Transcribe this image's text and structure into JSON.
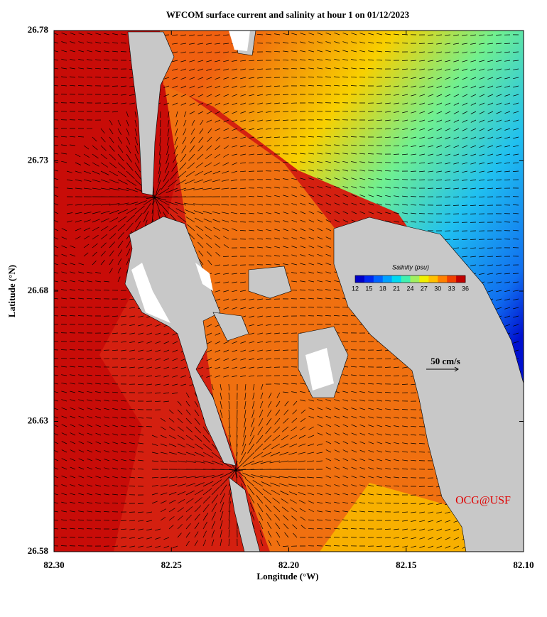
{
  "chart_data": {
    "type": "map",
    "title": "WFCOM surface current and salinity at hour 1 on 01/12/2023",
    "x_label": "Longitude (°W)",
    "y_label": "Latitude (°N)",
    "xlim": [
      82.3,
      82.1
    ],
    "xticks": [
      {
        "value": 82.3,
        "label": "82.30"
      },
      82.25,
      {
        "value": 82.2,
        "label": "82.20"
      },
      82.15,
      {
        "value": 82.1,
        "label": "82.10"
      }
    ],
    "ylim": [
      26.58,
      26.78
    ],
    "yticks": [
      26.58,
      26.63,
      26.68,
      26.73,
      26.78
    ],
    "colorbar": {
      "label": "Salinity (psu)",
      "ticks": [
        12,
        15,
        18,
        21,
        24,
        27,
        30,
        33,
        36
      ],
      "colors": [
        "#0000c8",
        "#0028f0",
        "#0064ff",
        "#00a0ff",
        "#00d8f0",
        "#40f0b0",
        "#a0f060",
        "#f0f000",
        "#ffc000",
        "#ff8000",
        "#f04000",
        "#c00000"
      ]
    },
    "reference_arrow": "50 cm/s",
    "credit": "OCG@USF"
  }
}
